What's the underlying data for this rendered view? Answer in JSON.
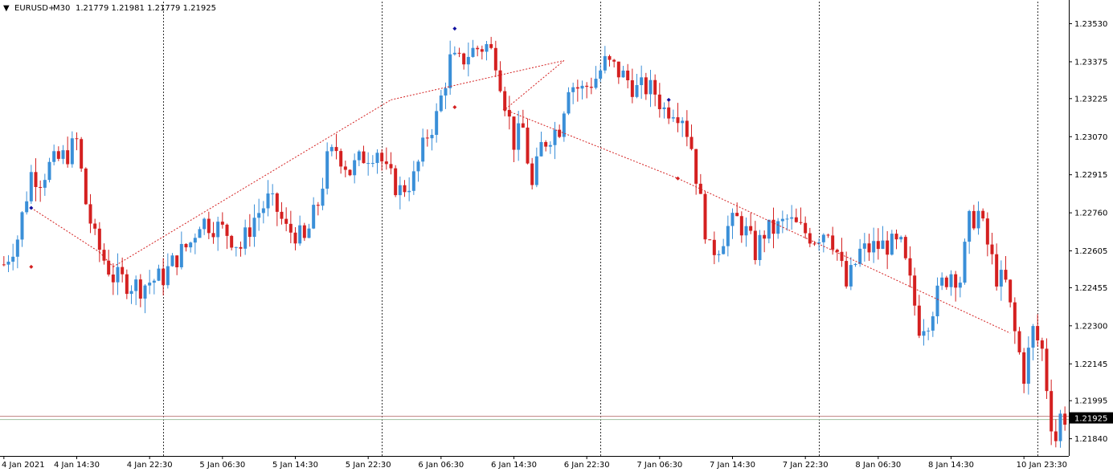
{
  "header": {
    "menu_glyph": "▼",
    "symbol": "EURUSD+",
    "timeframe": "M30",
    "quote": "1.21779 1.21981 1.21779 1.21925"
  },
  "colors": {
    "bull": "#3a8fd8",
    "bear": "#d42020",
    "background": "#ffffff",
    "grid": "#000000",
    "price_line": "#c08080",
    "price_label_bg": "#000000",
    "price_label_text": "#ffffff",
    "zigzag": "#d42020",
    "marker_red": "#d42020",
    "marker_blue": "#1010a0",
    "marker_yellow": "#e0d040"
  },
  "chart_data": {
    "type": "candlestick",
    "title": "EURUSD+,M30",
    "ylim": [
      1.2177,
      1.2362
    ],
    "yticks": [
      1.2353,
      1.23375,
      1.23225,
      1.2307,
      1.22915,
      1.2276,
      1.22605,
      1.22455,
      1.223,
      1.22145,
      1.21995,
      1.2184
    ],
    "ytick_labels": [
      "1.23530",
      "1.23375",
      "1.23225",
      "1.23070",
      "1.22915",
      "1.22760",
      "1.22605",
      "1.22455",
      "1.22300",
      "1.22145",
      "1.21995",
      "1.21840"
    ],
    "xtick_labels": [
      "4 Jan 2021",
      "4 Jan 14:30",
      "4 Jan 22:30",
      "5 Jan 06:30",
      "5 Jan 14:30",
      "5 Jan 22:30",
      "6 Jan 06:30",
      "6 Jan 14:30",
      "6 Jan 22:30",
      "7 Jan 06:30",
      "7 Jan 14:30",
      "7 Jan 22:30",
      "8 Jan 06:30",
      "8 Jan 14:30",
      "10 Jan 23:30"
    ],
    "xtick_index": [
      0,
      16,
      32,
      48,
      64,
      80,
      96,
      112,
      128,
      144,
      160,
      176,
      192,
      208,
      224
    ],
    "separators_index": [
      35,
      83,
      131,
      179,
      227
    ],
    "current_price": 1.21925,
    "current_price_label": "1.21925",
    "anchors": [
      [
        0,
        1.2255
      ],
      [
        3,
        1.2266
      ],
      [
        6,
        1.2292
      ],
      [
        8,
        1.229
      ],
      [
        10,
        1.2295
      ],
      [
        14,
        1.23
      ],
      [
        16,
        1.2305
      ],
      [
        18,
        1.228
      ],
      [
        20,
        1.2265
      ],
      [
        22,
        1.2257
      ],
      [
        24,
        1.225
      ],
      [
        28,
        1.2247
      ],
      [
        30,
        1.2246
      ],
      [
        32,
        1.2248
      ],
      [
        35,
        1.225
      ],
      [
        38,
        1.2258
      ],
      [
        41,
        1.2264
      ],
      [
        43,
        1.2273
      ],
      [
        46,
        1.2271
      ],
      [
        49,
        1.2268
      ],
      [
        52,
        1.2262
      ],
      [
        55,
        1.2274
      ],
      [
        58,
        1.2281
      ],
      [
        60,
        1.2277
      ],
      [
        62,
        1.2269
      ],
      [
        64,
        1.2268
      ],
      [
        66,
        1.2264
      ],
      [
        69,
        1.228
      ],
      [
        71,
        1.2297
      ],
      [
        73,
        1.2302
      ],
      [
        76,
        1.2293
      ],
      [
        79,
        1.2299
      ],
      [
        82,
        1.2302
      ],
      [
        84,
        1.2292
      ],
      [
        87,
        1.2285
      ],
      [
        90,
        1.229
      ],
      [
        93,
        1.2308
      ],
      [
        95,
        1.2315
      ],
      [
        98,
        1.2338
      ],
      [
        100,
        1.2337
      ],
      [
        102,
        1.2341
      ],
      [
        104,
        1.2343
      ],
      [
        106,
        1.2344
      ],
      [
        108,
        1.2339
      ],
      [
        110,
        1.2322
      ],
      [
        112,
        1.2305
      ],
      [
        114,
        1.231
      ],
      [
        116,
        1.2286
      ],
      [
        118,
        1.2303
      ],
      [
        120,
        1.2308
      ],
      [
        122,
        1.2311
      ],
      [
        124,
        1.2329
      ],
      [
        127,
        1.2326
      ],
      [
        130,
        1.2331
      ],
      [
        132,
        1.2337
      ],
      [
        134,
        1.2335
      ],
      [
        137,
        1.233
      ],
      [
        139,
        1.2326
      ],
      [
        141,
        1.2327
      ],
      [
        143,
        1.2325
      ],
      [
        145,
        1.2318
      ],
      [
        147,
        1.2319
      ],
      [
        149,
        1.2316
      ],
      [
        151,
        1.2303
      ],
      [
        153,
        1.228
      ],
      [
        155,
        1.226
      ],
      [
        157,
        1.2263
      ],
      [
        159,
        1.227
      ],
      [
        161,
        1.2273
      ],
      [
        163,
        1.2268
      ],
      [
        165,
        1.226
      ],
      [
        167,
        1.2268
      ],
      [
        170,
        1.227
      ],
      [
        172,
        1.2273
      ],
      [
        175,
        1.2269
      ],
      [
        178,
        1.2266
      ],
      [
        181,
        1.227
      ],
      [
        183,
        1.226
      ],
      [
        185,
        1.2246
      ],
      [
        188,
        1.226
      ],
      [
        191,
        1.2262
      ],
      [
        194,
        1.2263
      ],
      [
        197,
        1.2262
      ],
      [
        199,
        1.2247
      ],
      [
        201,
        1.223
      ],
      [
        203,
        1.2233
      ],
      [
        206,
        1.2247
      ],
      [
        208,
        1.2252
      ],
      [
        210,
        1.2249
      ],
      [
        212,
        1.2272
      ],
      [
        214,
        1.2276
      ],
      [
        216,
        1.2263
      ],
      [
        218,
        1.225
      ],
      [
        220,
        1.2247
      ],
      [
        222,
        1.2227
      ],
      [
        224,
        1.221
      ],
      [
        226,
        1.2228
      ],
      [
        228,
        1.222
      ],
      [
        230,
        1.2191
      ],
      [
        231,
        1.2184
      ],
      [
        232,
        1.2193
      ]
    ],
    "zigzag": [
      [
        6,
        1.2278
      ],
      [
        21,
        1.226
      ],
      [
        24,
        1.2254
      ],
      [
        85,
        1.2322
      ],
      [
        123,
        1.2338
      ],
      [
        110,
        1.2318
      ],
      [
        148,
        1.229
      ],
      [
        221,
        1.2227
      ]
    ],
    "markers": [
      {
        "i": 6,
        "price": 1.2254,
        "color": "red"
      },
      {
        "i": 99,
        "price": 1.2351,
        "color": "blue"
      },
      {
        "i": 99,
        "price": 1.2319,
        "color": "red"
      },
      {
        "i": 146,
        "price": 1.2322,
        "color": "blue"
      },
      {
        "i": 110,
        "price": 1.2318,
        "color": "red"
      },
      {
        "i": 148,
        "price": 1.229,
        "color": "red"
      },
      {
        "i": 6,
        "price": 1.2278,
        "color": "blue"
      }
    ]
  }
}
